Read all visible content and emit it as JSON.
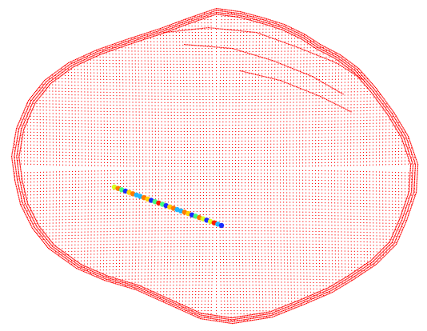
{
  "scene": {
    "background_color": "#ffffff",
    "cloud_color": "#ff0000",
    "probe_colors": [
      "#1a2cff",
      "#1fb6ff",
      "#40ff80",
      "#d9ff20",
      "#ffd000",
      "#ff7a00",
      "#ff1a00"
    ],
    "cloud_shape": "irregular-ellipsoid",
    "probe_shape": "line-of-colored-dots"
  }
}
